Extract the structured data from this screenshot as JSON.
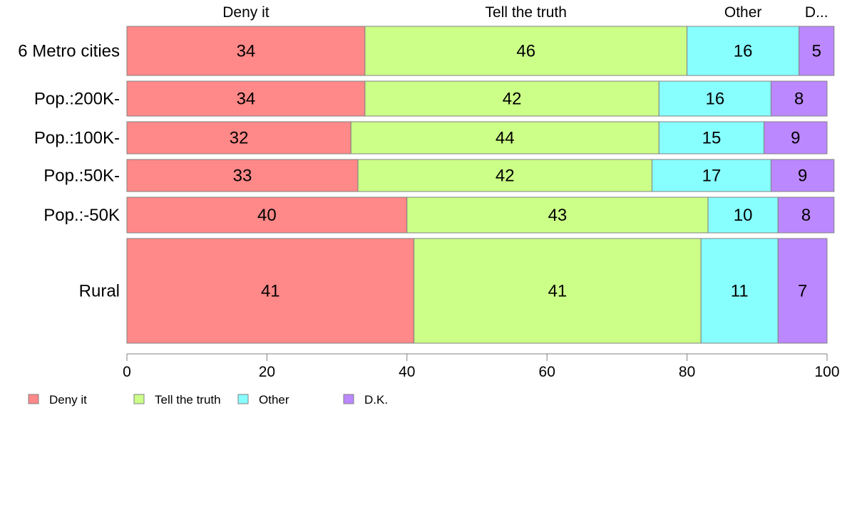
{
  "chart_data": {
    "type": "bar",
    "orientation": "horizontal",
    "stacked": true,
    "categories": [
      "6 Metro cities",
      "Pop.:200K-",
      "Pop.:100K-",
      "Pop.:50K-",
      "Pop.:-50K",
      "Rural"
    ],
    "series": [
      {
        "name": "Deny it",
        "color": "#ff8888",
        "values": [
          34,
          34,
          32,
          33,
          40,
          41
        ]
      },
      {
        "name": "Tell the truth",
        "color": "#ccff88",
        "values": [
          46,
          42,
          44,
          42,
          43,
          41
        ]
      },
      {
        "name": "Other",
        "color": "#88ffff",
        "values": [
          16,
          16,
          15,
          17,
          10,
          11
        ]
      },
      {
        "name": "D.K.",
        "color": "#bb88ff",
        "values": [
          5,
          8,
          9,
          9,
          8,
          7
        ]
      }
    ],
    "column_headers": [
      "Deny it",
      "Tell the truth",
      "Other",
      "D..."
    ],
    "xlim": [
      0,
      100
    ],
    "xticks": [
      "0",
      "20",
      "40",
      "60",
      "80",
      "100"
    ],
    "legend": [
      "Deny it",
      "Tell the truth",
      "Other",
      "D.K."
    ],
    "legend_position": "bottom-left",
    "grid": false
  }
}
